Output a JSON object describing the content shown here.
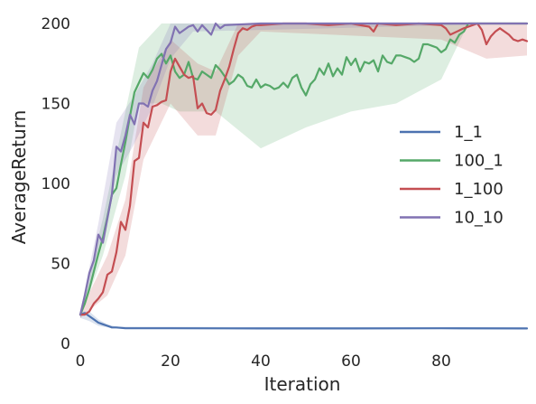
{
  "chart_data": {
    "type": "line",
    "title": "",
    "xlabel": "Iteration",
    "ylabel": "AverageReturn",
    "xlim": [
      0,
      99
    ],
    "ylim": [
      0,
      200
    ],
    "xticks": [
      0,
      20,
      40,
      60,
      80
    ],
    "yticks": [
      0,
      50,
      100,
      150,
      200
    ],
    "grid": false,
    "legend_position": "center-right",
    "series": [
      {
        "name": "1_1",
        "color": "#4c72b0",
        "points": [
          [
            0,
            18
          ],
          [
            1,
            19
          ],
          [
            2,
            17
          ],
          [
            3,
            15
          ],
          [
            4,
            13
          ],
          [
            5,
            12
          ],
          [
            6,
            11
          ],
          [
            7,
            10
          ],
          [
            8,
            10
          ],
          [
            10,
            9.5
          ],
          [
            20,
            9.5
          ],
          [
            40,
            9.4
          ],
          [
            60,
            9.4
          ],
          [
            80,
            9.5
          ],
          [
            99,
            9.4
          ]
        ],
        "band": [
          [
            0,
            16,
            20
          ],
          [
            2,
            14,
            20
          ],
          [
            4,
            11,
            15
          ],
          [
            6,
            10,
            12
          ],
          [
            8,
            9.5,
            10.5
          ],
          [
            99,
            9.2,
            9.7
          ]
        ]
      },
      {
        "name": "100_1",
        "color": "#55a868",
        "points": [
          [
            0,
            18
          ],
          [
            1,
            25
          ],
          [
            2,
            34
          ],
          [
            3,
            45
          ],
          [
            4,
            56
          ],
          [
            5,
            66
          ],
          [
            6,
            79
          ],
          [
            7,
            93
          ],
          [
            8,
            97
          ],
          [
            9,
            112
          ],
          [
            10,
            126
          ],
          [
            11,
            142
          ],
          [
            12,
            157
          ],
          [
            13,
            163
          ],
          [
            14,
            169
          ],
          [
            15,
            166
          ],
          [
            16,
            171
          ],
          [
            17,
            178
          ],
          [
            18,
            181
          ],
          [
            19,
            175
          ],
          [
            20,
            180
          ],
          [
            21,
            170
          ],
          [
            22,
            166
          ],
          [
            23,
            168
          ],
          [
            24,
            176
          ],
          [
            25,
            166
          ],
          [
            26,
            165
          ],
          [
            27,
            170
          ],
          [
            28,
            168
          ],
          [
            29,
            166
          ],
          [
            30,
            174
          ],
          [
            31,
            171
          ],
          [
            32,
            167
          ],
          [
            33,
            162
          ],
          [
            34,
            164
          ],
          [
            35,
            168
          ],
          [
            36,
            166
          ],
          [
            37,
            161
          ],
          [
            38,
            160
          ],
          [
            39,
            165
          ],
          [
            40,
            160
          ],
          [
            41,
            162
          ],
          [
            42,
            161
          ],
          [
            43,
            159
          ],
          [
            44,
            160
          ],
          [
            45,
            163
          ],
          [
            46,
            160
          ],
          [
            47,
            166
          ],
          [
            48,
            168
          ],
          [
            49,
            160
          ],
          [
            50,
            155
          ],
          [
            51,
            162
          ],
          [
            52,
            165
          ],
          [
            53,
            172
          ],
          [
            54,
            168
          ],
          [
            55,
            175
          ],
          [
            56,
            167
          ],
          [
            57,
            172
          ],
          [
            58,
            168
          ],
          [
            59,
            179
          ],
          [
            60,
            174
          ],
          [
            61,
            178
          ],
          [
            62,
            170
          ],
          [
            63,
            176
          ],
          [
            64,
            175
          ],
          [
            65,
            177
          ],
          [
            66,
            170
          ],
          [
            67,
            180
          ],
          [
            68,
            176
          ],
          [
            69,
            175
          ],
          [
            70,
            180
          ],
          [
            71,
            180
          ],
          [
            72,
            179
          ],
          [
            73,
            178
          ],
          [
            74,
            176
          ],
          [
            75,
            178
          ],
          [
            76,
            187
          ],
          [
            77,
            187
          ],
          [
            78,
            186
          ],
          [
            79,
            185
          ],
          [
            80,
            182
          ],
          [
            81,
            184
          ],
          [
            82,
            190
          ],
          [
            83,
            188
          ],
          [
            84,
            193
          ],
          [
            85,
            195
          ],
          [
            86,
            200
          ],
          [
            99,
            200
          ]
        ],
        "band": [
          [
            0,
            16,
            20
          ],
          [
            5,
            55,
            78
          ],
          [
            10,
            105,
            145
          ],
          [
            13,
            150,
            185
          ],
          [
            18,
            150,
            200
          ],
          [
            22,
            145,
            200
          ],
          [
            30,
            145,
            200
          ],
          [
            40,
            122,
            200
          ],
          [
            50,
            135,
            200
          ],
          [
            60,
            145,
            200
          ],
          [
            70,
            150,
            200
          ],
          [
            80,
            165,
            200
          ],
          [
            86,
            200,
            200
          ],
          [
            99,
            200,
            200
          ]
        ]
      },
      {
        "name": "1_100",
        "color": "#c44e52",
        "points": [
          [
            0,
            18
          ],
          [
            1,
            18
          ],
          [
            2,
            20
          ],
          [
            3,
            25
          ],
          [
            4,
            28
          ],
          [
            5,
            32
          ],
          [
            6,
            43
          ],
          [
            7,
            45
          ],
          [
            8,
            57
          ],
          [
            9,
            76
          ],
          [
            10,
            71
          ],
          [
            11,
            86
          ],
          [
            12,
            114
          ],
          [
            13,
            116
          ],
          [
            14,
            138
          ],
          [
            15,
            135
          ],
          [
            16,
            148
          ],
          [
            17,
            149
          ],
          [
            18,
            151
          ],
          [
            19,
            152
          ],
          [
            20,
            170
          ],
          [
            21,
            178
          ],
          [
            22,
            173
          ],
          [
            23,
            168
          ],
          [
            24,
            166
          ],
          [
            25,
            167
          ],
          [
            26,
            147
          ],
          [
            27,
            150
          ],
          [
            28,
            144
          ],
          [
            29,
            143
          ],
          [
            30,
            146
          ],
          [
            31,
            158
          ],
          [
            32,
            165
          ],
          [
            33,
            173
          ],
          [
            34,
            184
          ],
          [
            35,
            194
          ],
          [
            36,
            197
          ],
          [
            37,
            196
          ],
          [
            38,
            198
          ],
          [
            39,
            199
          ],
          [
            40,
            199
          ],
          [
            45,
            200
          ],
          [
            50,
            200
          ],
          [
            55,
            199
          ],
          [
            60,
            200
          ],
          [
            64,
            198
          ],
          [
            65,
            195
          ],
          [
            66,
            200
          ],
          [
            70,
            199
          ],
          [
            75,
            200
          ],
          [
            80,
            199
          ],
          [
            81,
            197
          ],
          [
            82,
            193
          ],
          [
            85,
            197
          ],
          [
            88,
            200
          ],
          [
            89,
            196
          ],
          [
            90,
            187
          ],
          [
            91,
            192
          ],
          [
            92,
            195
          ],
          [
            93,
            197
          ],
          [
            95,
            193
          ],
          [
            96,
            190
          ],
          [
            97,
            189
          ],
          [
            98,
            190
          ],
          [
            99,
            189
          ]
        ],
        "band": [
          [
            0,
            16,
            20
          ],
          [
            6,
            30,
            55
          ],
          [
            10,
            55,
            90
          ],
          [
            14,
            115,
            160
          ],
          [
            20,
            150,
            190
          ],
          [
            26,
            130,
            175
          ],
          [
            30,
            130,
            170
          ],
          [
            35,
            180,
            200
          ],
          [
            40,
            195,
            200
          ],
          [
            80,
            190,
            200
          ],
          [
            90,
            178,
            200
          ],
          [
            99,
            180,
            200
          ]
        ]
      },
      {
        "name": "10_10",
        "color": "#8172b2",
        "points": [
          [
            0,
            18
          ],
          [
            1,
            30
          ],
          [
            2,
            44
          ],
          [
            3,
            52
          ],
          [
            4,
            68
          ],
          [
            5,
            63
          ],
          [
            6,
            78
          ],
          [
            7,
            93
          ],
          [
            8,
            123
          ],
          [
            9,
            120
          ],
          [
            10,
            130
          ],
          [
            11,
            143
          ],
          [
            12,
            137
          ],
          [
            13,
            150
          ],
          [
            14,
            150
          ],
          [
            15,
            148
          ],
          [
            16,
            158
          ],
          [
            17,
            164
          ],
          [
            18,
            174
          ],
          [
            19,
            184
          ],
          [
            20,
            188
          ],
          [
            21,
            198
          ],
          [
            22,
            194
          ],
          [
            23,
            196
          ],
          [
            24,
            198
          ],
          [
            25,
            199
          ],
          [
            26,
            195
          ],
          [
            27,
            199
          ],
          [
            28,
            196
          ],
          [
            29,
            193
          ],
          [
            30,
            200
          ],
          [
            31,
            197
          ],
          [
            32,
            199
          ],
          [
            40,
            200
          ],
          [
            99,
            200
          ]
        ],
        "band": [
          [
            0,
            16,
            20
          ],
          [
            4,
            55,
            75
          ],
          [
            8,
            105,
            138
          ],
          [
            12,
            125,
            155
          ],
          [
            16,
            148,
            175
          ],
          [
            20,
            178,
            200
          ],
          [
            25,
            195,
            200
          ],
          [
            99,
            200,
            200
          ]
        ]
      }
    ]
  }
}
